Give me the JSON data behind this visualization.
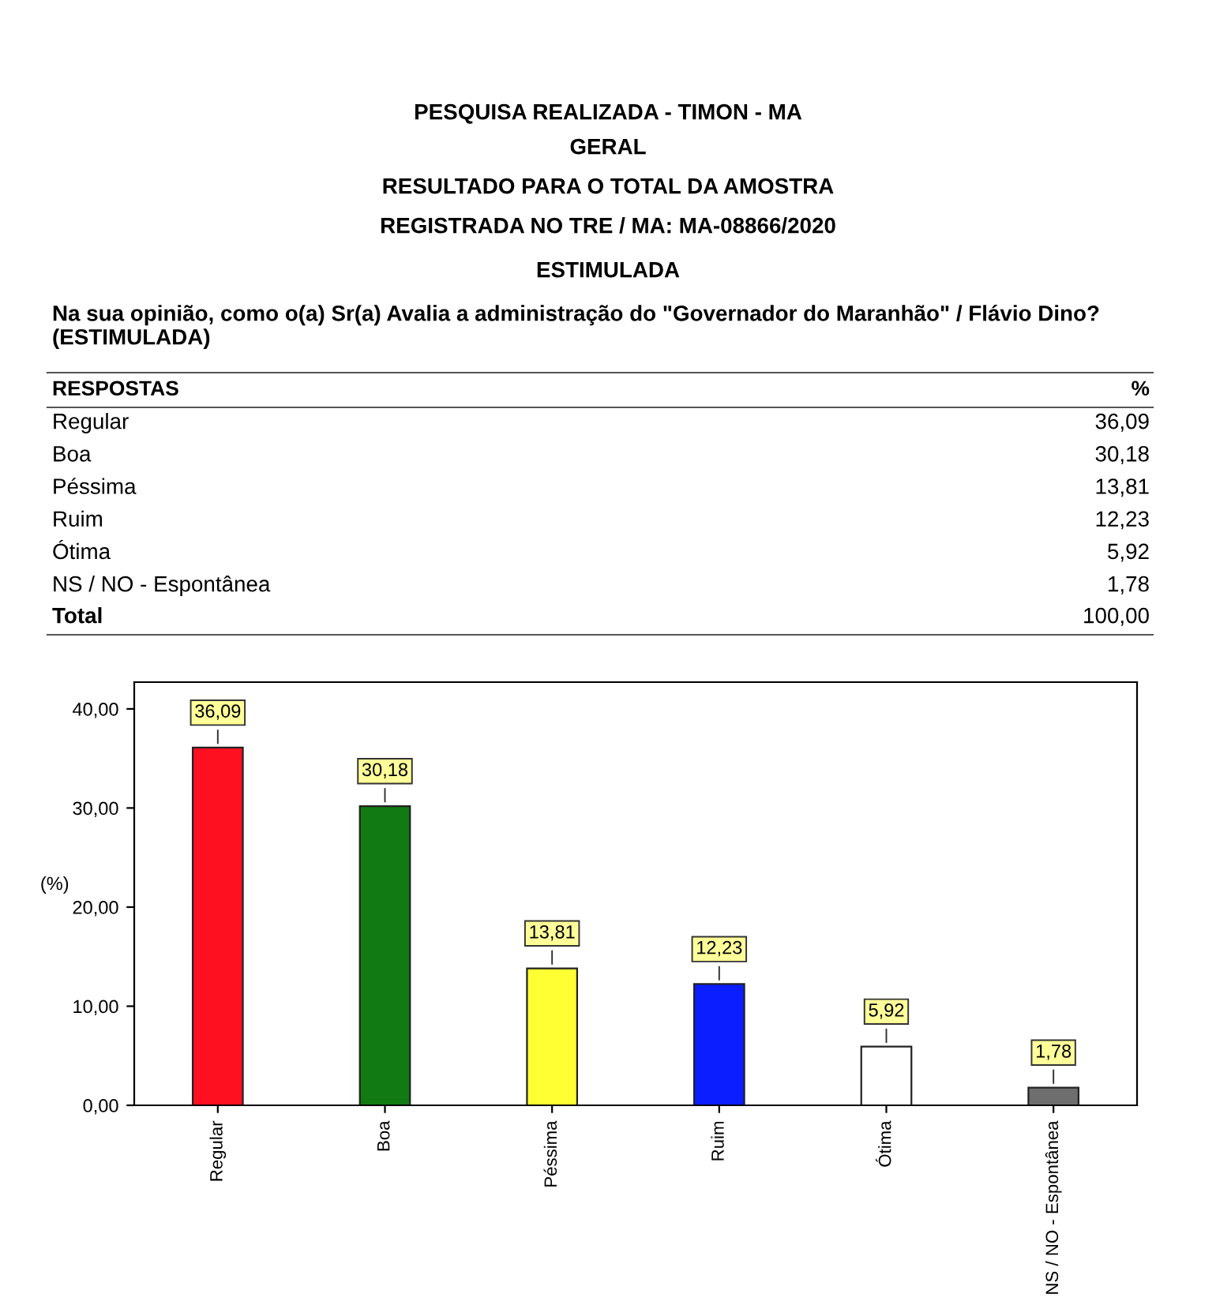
{
  "chart_data": {
    "type": "bar",
    "title": "PESQUISA REALIZADA - TIMON - MA",
    "subtitle": "GERAL",
    "annotations": [
      "RESULTADO PARA O TOTAL DA AMOSTRA",
      "REGISTRADA NO TRE / MA: MA-08866/2020",
      "ESTIMULADA",
      "Na sua opinião, como o(a) Sr(a) Avalia a administração do \"Governador do Maranhão\" / Flávio Dino? (ESTIMULADA)",
      "RESPOSTAS",
      "%",
      "Total",
      "100,00"
    ],
    "ylabel": "(%)",
    "categories": [
      "Regular",
      "Boa",
      "Péssima",
      "Ruim",
      "Ótima",
      "NS / NO - Espontânea"
    ],
    "values": [
      36.09,
      30.18,
      13.81,
      12.23,
      5.92,
      1.78
    ],
    "value_labels": [
      "36,09",
      "30,18",
      "13,81",
      "12,23",
      "5,92",
      "1,78"
    ],
    "colors": [
      "#ff1020",
      "#127a12",
      "#ffff33",
      "#0a1eff",
      "#ffffff",
      "#6e6e6e"
    ],
    "ylim": [
      0,
      42.7
    ],
    "yticks": [
      {
        "value": 0,
        "label": "0,00"
      },
      {
        "value": 10,
        "label": "10,00"
      },
      {
        "value": 20,
        "label": "20,00"
      },
      {
        "value": 30,
        "label": "30,00"
      },
      {
        "value": 40,
        "label": "40,00"
      }
    ],
    "grid": false,
    "legend": false
  }
}
